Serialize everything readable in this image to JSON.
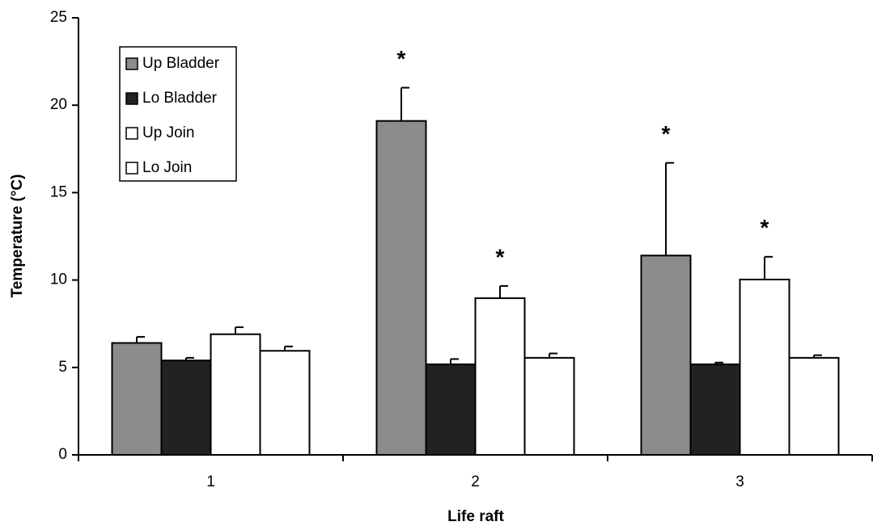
{
  "chart_data": {
    "type": "bar",
    "xlabel": "Life raft",
    "ylabel": "Temperature (°C)",
    "categories": [
      "1",
      "2",
      "3"
    ],
    "series": [
      {
        "name": "Up Bladder",
        "color": "#8c8c8c",
        "values": [
          6.4,
          19.1,
          11.4
        ],
        "errors": [
          0.35,
          1.9,
          5.3
        ],
        "annotations": [
          null,
          "*",
          "*"
        ]
      },
      {
        "name": "Lo Bladder",
        "color": "#222222",
        "values": [
          5.4,
          5.18,
          5.18
        ],
        "errors": [
          0.15,
          0.3,
          0.1
        ]
      },
      {
        "name": "Up Join",
        "color": "#ffffff",
        "values": [
          6.9,
          8.96,
          10.03
        ],
        "errors": [
          0.4,
          0.7,
          1.3
        ],
        "annotations": [
          null,
          "*",
          "*"
        ]
      },
      {
        "name": "Lo Join",
        "color": "#ffffff",
        "values": [
          5.95,
          5.55,
          5.55
        ],
        "errors": [
          0.25,
          0.25,
          0.15
        ]
      }
    ],
    "ylim": [
      0,
      25
    ],
    "yticks": [
      0,
      5,
      10,
      15,
      20,
      25
    ],
    "legend": "upper left"
  }
}
